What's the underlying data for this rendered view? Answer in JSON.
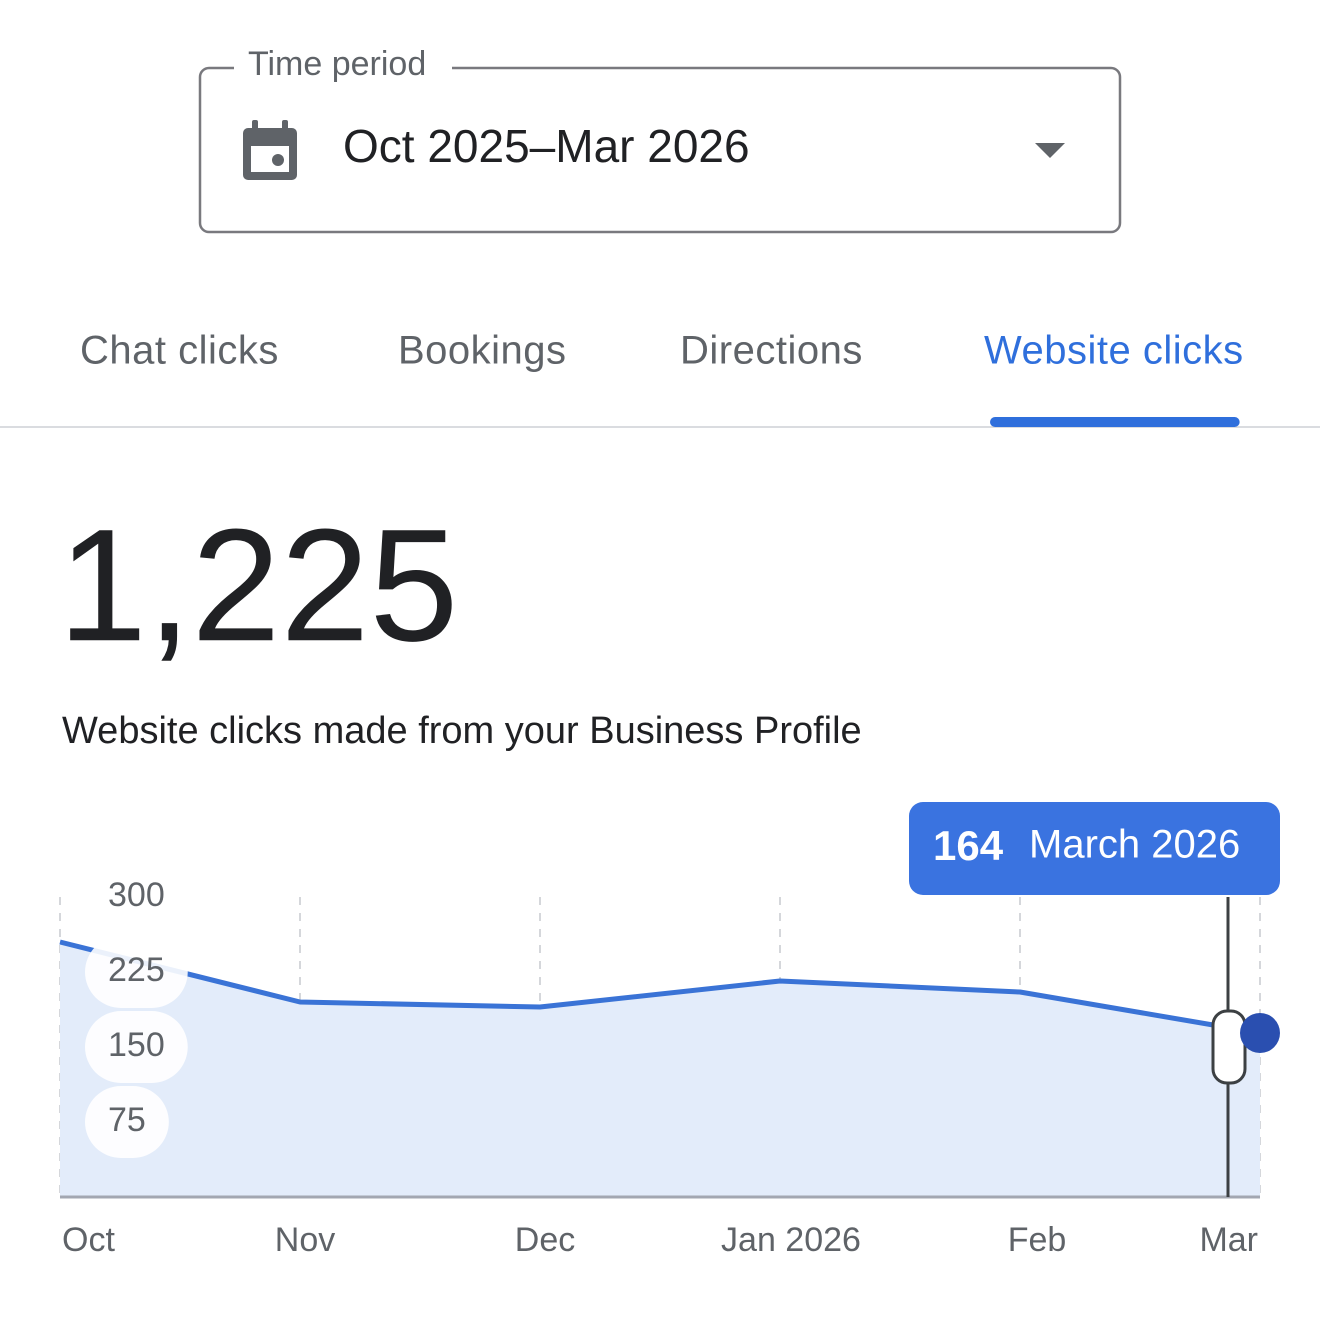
{
  "time_period": {
    "label": "Time period",
    "value": "Oct 2025–Mar 2026"
  },
  "tabs": [
    {
      "label": "Chat clicks",
      "selected": false
    },
    {
      "label": "Bookings",
      "selected": false
    },
    {
      "label": "Directions",
      "selected": false
    },
    {
      "label": "Website clicks",
      "selected": true
    }
  ],
  "summary": {
    "total": "1,225",
    "description": "Website clicks made from your Business Profile"
  },
  "chart_data": {
    "type": "area",
    "categories": [
      "Oct",
      "Nov",
      "Dec",
      "Jan 2026",
      "Feb",
      "Mar"
    ],
    "values": [
      255,
      195,
      190,
      216,
      205,
      164
    ],
    "color": "#3a73d6",
    "ylim": [
      0,
      300
    ],
    "yticks": [
      75,
      150,
      225,
      300
    ],
    "grid": true,
    "tooltip": {
      "label": "March 2026"
    }
  }
}
